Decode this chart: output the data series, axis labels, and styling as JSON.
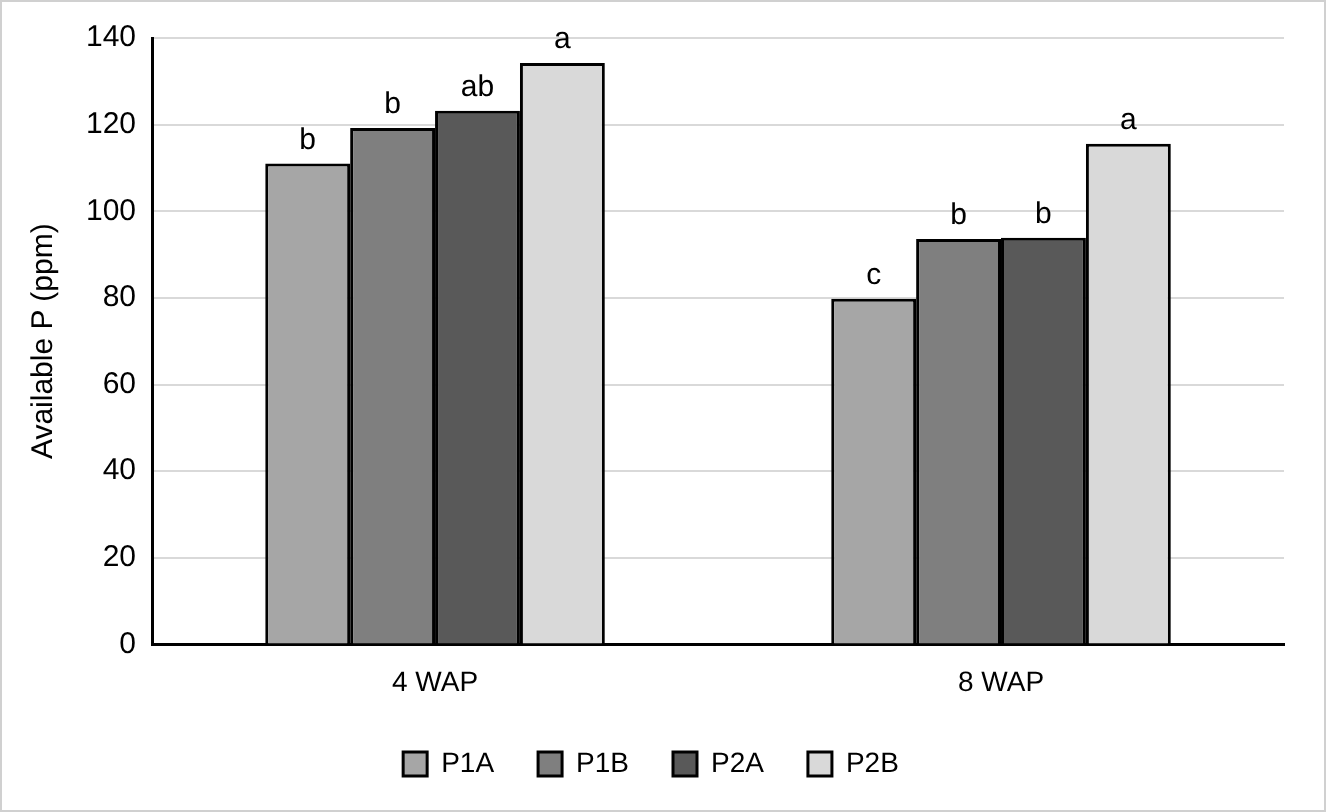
{
  "chart_data": {
    "type": "bar",
    "ylabel": "Available P (ppm)",
    "categories": [
      "4 WAP",
      "8 WAP"
    ],
    "series": [
      {
        "name": "P1A",
        "color": "#a6a6a6",
        "values": [
          111,
          79.8
        ],
        "value_labels": [
          "b",
          "c"
        ]
      },
      {
        "name": "P1B",
        "color": "#7f7f7f",
        "values": [
          119.2,
          93.6
        ],
        "value_labels": [
          "b",
          "b"
        ]
      },
      {
        "name": "P2A",
        "color": "#595959",
        "values": [
          123.2,
          93.9
        ],
        "value_labels": [
          "ab",
          "b"
        ]
      },
      {
        "name": "P2B",
        "color": "#d9d9d9",
        "values": [
          134.2,
          115.6
        ],
        "value_labels": [
          "a",
          "a"
        ]
      }
    ],
    "ylim": [
      0,
      140
    ],
    "yticks": [
      0,
      20,
      40,
      60,
      80,
      100,
      120,
      140
    ],
    "grid": "y",
    "legend": "bottom"
  }
}
